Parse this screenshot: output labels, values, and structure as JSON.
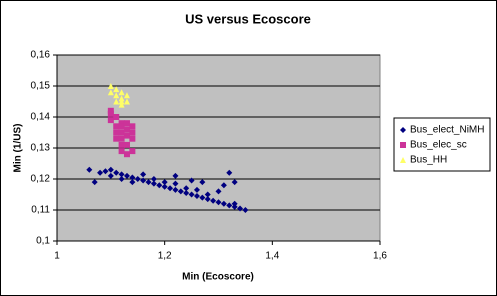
{
  "chart_data": {
    "type": "scatter",
    "title": "US versus Ecoscore",
    "x_label": "Min (Ecoscore)",
    "y_label": "Min (1/US)",
    "xlim": [
      1,
      1.6
    ],
    "ylim": [
      0.1,
      0.16
    ],
    "xticks": [
      1,
      {
        "value": 1.2,
        "label": "1,2"
      },
      {
        "value": 1.4,
        "label": "1,4"
      },
      {
        "value": 1.6,
        "label": "1,6"
      }
    ],
    "yticks": [
      {
        "value": 0.1,
        "label": "0,1"
      },
      {
        "value": 0.11,
        "label": "0,11"
      },
      {
        "value": 0.12,
        "label": "0,12"
      },
      {
        "value": 0.13,
        "label": "0,13"
      },
      {
        "value": 0.14,
        "label": "0,14"
      },
      {
        "value": 0.15,
        "label": "0,15"
      },
      {
        "value": 0.16,
        "label": "0,16"
      }
    ],
    "grid": true,
    "legend": "right",
    "series": [
      {
        "name": "Bus_elect_NiMH",
        "color": "#000080",
        "marker": "diamond",
        "x": [
          1.06,
          1.08,
          1.09,
          1.1,
          1.1,
          1.11,
          1.12,
          1.12,
          1.13,
          1.14,
          1.14,
          1.15,
          1.16,
          1.16,
          1.17,
          1.18,
          1.18,
          1.19,
          1.2,
          1.2,
          1.21,
          1.22,
          1.22,
          1.23,
          1.24,
          1.24,
          1.25,
          1.26,
          1.26,
          1.27,
          1.28,
          1.28,
          1.29,
          1.3,
          1.31,
          1.32,
          1.33,
          1.34,
          1.35,
          1.32,
          1.33,
          1.31,
          1.22,
          1.27,
          1.07,
          1.3,
          1.33,
          1.25
        ],
        "values": [
          0.123,
          0.122,
          0.1225,
          0.123,
          0.121,
          0.122,
          0.1215,
          0.12,
          0.121,
          0.1205,
          0.119,
          0.12,
          0.1195,
          0.1215,
          0.119,
          0.1185,
          0.12,
          0.118,
          0.1175,
          0.119,
          0.117,
          0.1165,
          0.1185,
          0.116,
          0.1155,
          0.117,
          0.115,
          0.1145,
          0.1165,
          0.114,
          0.1135,
          0.115,
          0.113,
          0.1125,
          0.112,
          0.1115,
          0.111,
          0.1105,
          0.11,
          0.122,
          0.119,
          0.118,
          0.121,
          0.119,
          0.119,
          0.116,
          0.112,
          0.1195
        ]
      },
      {
        "name": "Bus_elec_sc",
        "color": "#cc3399",
        "marker": "square",
        "x": [
          1.1,
          1.1,
          1.11,
          1.11,
          1.12,
          1.12,
          1.12,
          1.13,
          1.13,
          1.13,
          1.14,
          1.14,
          1.14,
          1.11,
          1.12,
          1.13,
          1.1,
          1.12,
          1.14,
          1.13,
          1.11,
          1.12
        ],
        "values": [
          0.142,
          0.139,
          0.14,
          0.137,
          0.138,
          0.135,
          0.133,
          0.136,
          0.134,
          0.131,
          0.137,
          0.133,
          0.129,
          0.135,
          0.131,
          0.128,
          0.141,
          0.137,
          0.135,
          0.138,
          0.133,
          0.129
        ]
      },
      {
        "name": "Bus_HH",
        "color": "#ffff66",
        "marker": "triangle",
        "x": [
          1.1,
          1.1,
          1.11,
          1.11,
          1.12,
          1.12,
          1.12,
          1.13,
          1.13,
          1.11,
          1.12
        ],
        "values": [
          0.15,
          0.148,
          0.149,
          0.147,
          0.148,
          0.146,
          0.145,
          0.147,
          0.145,
          0.145,
          0.144
        ]
      }
    ]
  }
}
